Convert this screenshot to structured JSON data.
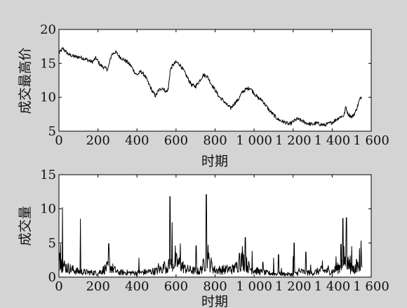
{
  "colors": {
    "figure_background": "#d4d4d4",
    "axes_background": "#ffffff",
    "line": "#000000"
  },
  "chart_data": [
    {
      "type": "line",
      "name": "top",
      "xlabel": "时期",
      "ylabel": "成交最高价",
      "xlim": [
        0,
        1600
      ],
      "ylim": [
        5,
        20
      ],
      "xticks": [
        0,
        200,
        400,
        600,
        800,
        1000,
        1200,
        1400,
        1600
      ],
      "xtick_labels": [
        "0",
        "200",
        "400",
        "600",
        "800",
        "1 000",
        "1 200",
        "1 400",
        "1 600"
      ],
      "yticks": [
        5,
        10,
        15,
        20
      ],
      "ytick_labels": [
        "5",
        "10",
        "15",
        "20"
      ],
      "grid": false,
      "series": [
        {
          "x": [
            0,
            20,
            50,
            80,
            110,
            140,
            170,
            190,
            210,
            230,
            250,
            270,
            290,
            310,
            330,
            350,
            370,
            390,
            400,
            420,
            440,
            460,
            480,
            495,
            510,
            530,
            550,
            560,
            570,
            580,
            600,
            620,
            640,
            660,
            680,
            700,
            720,
            740,
            760,
            780,
            800,
            820,
            840,
            860,
            880,
            900,
            920,
            940,
            960,
            980,
            1000,
            1020,
            1040,
            1060,
            1080,
            1100,
            1120,
            1140,
            1160,
            1180,
            1200,
            1220,
            1240,
            1260,
            1280,
            1300,
            1320,
            1340,
            1360,
            1380,
            1400,
            1420,
            1440,
            1460,
            1470,
            1480,
            1500,
            1510,
            1520,
            1530,
            1540,
            1550
          ],
          "y": [
            16.5,
            17.2,
            16.3,
            16.0,
            15.9,
            15.6,
            15.2,
            15.8,
            14.8,
            14.4,
            14.1,
            16.3,
            16.7,
            16.0,
            15.6,
            15.2,
            14.6,
            13.6,
            13.3,
            13.8,
            13.2,
            12.0,
            10.8,
            10.2,
            11.0,
            11.4,
            10.8,
            11.2,
            14.0,
            14.6,
            15.2,
            14.8,
            13.9,
            12.8,
            11.8,
            11.6,
            12.4,
            13.3,
            13.1,
            12.0,
            11.1,
            10.1,
            9.6,
            8.9,
            8.4,
            9.1,
            9.7,
            10.8,
            11.2,
            11.4,
            10.6,
            9.9,
            9.6,
            8.8,
            8.0,
            7.4,
            6.8,
            6.5,
            6.3,
            6.0,
            6.4,
            6.8,
            6.6,
            6.3,
            6.1,
            6.0,
            6.2,
            6.0,
            5.9,
            6.1,
            6.3,
            6.7,
            7.1,
            7.3,
            8.6,
            7.6,
            7.1,
            7.4,
            7.9,
            8.7,
            9.6,
            10.1
          ]
        }
      ]
    },
    {
      "type": "line",
      "name": "bottom",
      "xlabel": "时期",
      "ylabel": "成交量",
      "xlim": [
        0,
        1600
      ],
      "ylim": [
        0,
        15
      ],
      "xticks": [
        0,
        200,
        400,
        600,
        800,
        1000,
        1200,
        1400,
        1600
      ],
      "xtick_labels": [
        "0",
        "200",
        "400",
        "600",
        "800",
        "1 000",
        "1 200",
        "1 400",
        "1 600"
      ],
      "yticks": [
        0,
        5,
        10,
        15
      ],
      "ytick_labels": [
        "0",
        "5",
        "10",
        "15"
      ],
      "grid": false,
      "series": [
        {
          "baseline": [
            [
              0,
              2.2
            ],
            [
              40,
              1.4
            ],
            [
              100,
              0.8
            ],
            [
              200,
              0.6
            ],
            [
              260,
              1.6
            ],
            [
              300,
              0.7
            ],
            [
              400,
              0.6
            ],
            [
              500,
              0.9
            ],
            [
              560,
              1.6
            ],
            [
              600,
              2.2
            ],
            [
              660,
              1.1
            ],
            [
              720,
              0.8
            ],
            [
              760,
              2.6
            ],
            [
              800,
              1.0
            ],
            [
              900,
              1.2
            ],
            [
              940,
              2.6
            ],
            [
              980,
              1.2
            ],
            [
              1040,
              0.7
            ],
            [
              1100,
              0.5
            ],
            [
              1200,
              0.4
            ],
            [
              1240,
              0.8
            ],
            [
              1300,
              0.6
            ],
            [
              1340,
              1.0
            ],
            [
              1400,
              0.8
            ],
            [
              1440,
              1.5
            ],
            [
              1470,
              2.6
            ],
            [
              1500,
              1.1
            ],
            [
              1540,
              1.7
            ],
            [
              1555,
              2.2
            ]
          ],
          "spikes": [
            [
              3,
              3.5
            ],
            [
              8,
              4.8
            ],
            [
              18,
              10.2
            ],
            [
              110,
              8.5
            ],
            [
              255,
              4.9
            ],
            [
              258,
              3.0
            ],
            [
              410,
              2.8
            ],
            [
              510,
              2.0
            ],
            [
              540,
              2.3
            ],
            [
              569,
              11.8
            ],
            [
              580,
              8.0
            ],
            [
              596,
              4.6
            ],
            [
              622,
              4.9
            ],
            [
              645,
              1.8
            ],
            [
              703,
              4.6
            ],
            [
              755,
              12.1
            ],
            [
              764,
              4.7
            ],
            [
              770,
              2.5
            ],
            [
              900,
              1.8
            ],
            [
              925,
              3.5
            ],
            [
              940,
              4.5
            ],
            [
              955,
              5.8
            ],
            [
              990,
              3.8
            ],
            [
              1045,
              2.2
            ],
            [
              1100,
              2.8
            ],
            [
              1125,
              3.3
            ],
            [
              1140,
              1.3
            ],
            [
              1200,
              3.0
            ],
            [
              1205,
              5.0
            ],
            [
              1230,
              1.3
            ],
            [
              1265,
              3.7
            ],
            [
              1290,
              1.8
            ],
            [
              1350,
              2.4
            ],
            [
              1380,
              1.7
            ],
            [
              1420,
              3.0
            ],
            [
              1445,
              4.8
            ],
            [
              1455,
              8.6
            ],
            [
              1460,
              4.5
            ],
            [
              1473,
              8.7
            ],
            [
              1480,
              2.4
            ],
            [
              1492,
              3.1
            ],
            [
              1500,
              4.5
            ],
            [
              1515,
              0.5
            ],
            [
              1525,
              2.6
            ],
            [
              1540,
              4.2
            ],
            [
              1548,
              5.3
            ]
          ]
        }
      ]
    }
  ]
}
